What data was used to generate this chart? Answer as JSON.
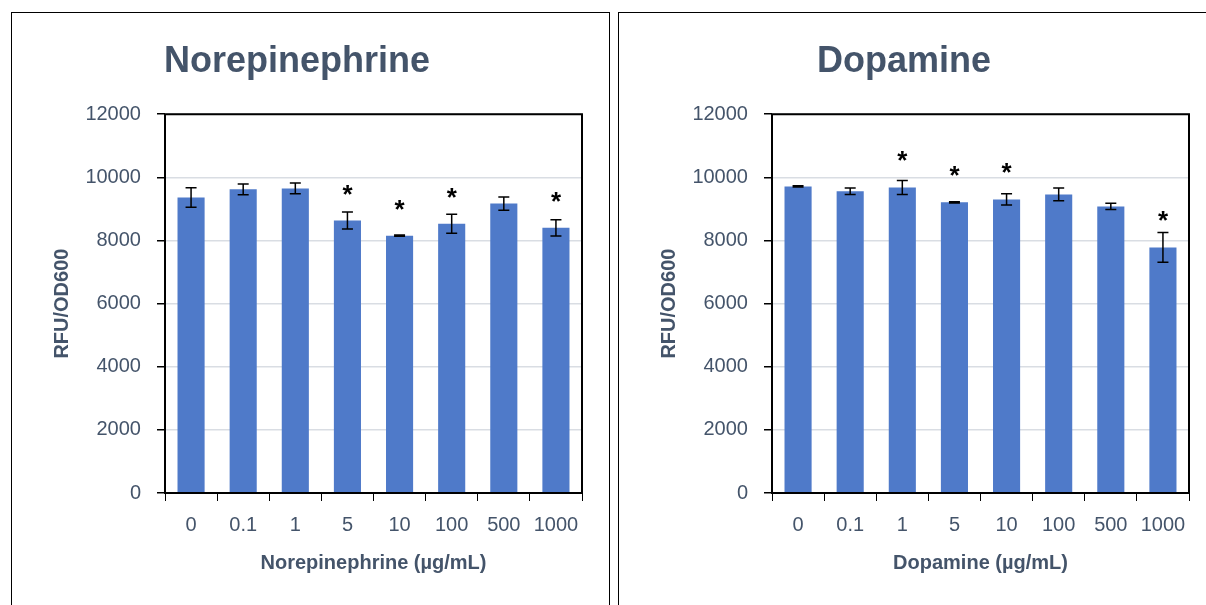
{
  "chart_data": [
    {
      "type": "bar",
      "title": "Norepinephrine",
      "xlabel": "Norepinephrine (µg/mL)",
      "ylabel": "RFU/OD600",
      "categories": [
        "0",
        "0.1",
        "1",
        "5",
        "10",
        "100",
        "500",
        "1000"
      ],
      "values": [
        9360,
        9620,
        9650,
        8630,
        8150,
        8530,
        9170,
        8400
      ],
      "errors": [
        310,
        170,
        170,
        270,
        20,
        300,
        210,
        260
      ],
      "color": "#4f7ac9",
      "ylim": [
        0,
        12000
      ],
      "yticks": [
        0,
        2000,
        4000,
        6000,
        8000,
        10000,
        12000
      ],
      "grid": "y",
      "annotations": [
        {
          "text": "*",
          "x": "5",
          "y": 8630
        },
        {
          "text": "*",
          "x": "10",
          "y": 8150
        },
        {
          "text": "*",
          "x": "100",
          "y": 8530
        },
        {
          "text": "*",
          "x": "1000",
          "y": 8400
        }
      ]
    },
    {
      "type": "bar",
      "title": "Dopamine",
      "xlabel": "Dopamine (µg/mL)",
      "ylabel": "RFU/OD600",
      "categories": [
        "0",
        "0.1",
        "1",
        "5",
        "10",
        "100",
        "500",
        "1000"
      ],
      "values": [
        9710,
        9560,
        9680,
        9210,
        9300,
        9460,
        9080,
        7780
      ],
      "errors": [
        20,
        100,
        220,
        20,
        180,
        200,
        100,
        470
      ],
      "color": "#4f7ac9",
      "ylim": [
        0,
        12000
      ],
      "yticks": [
        0,
        2000,
        4000,
        6000,
        8000,
        10000,
        12000
      ],
      "grid": "y",
      "annotations": [
        {
          "text": "*",
          "x": "1",
          "y": 9680
        },
        {
          "text": "*",
          "x": "5",
          "y": 9210
        },
        {
          "text": "*",
          "x": "10",
          "y": 9300
        },
        {
          "text": "*",
          "x": "1000",
          "y": 7780
        }
      ]
    }
  ]
}
